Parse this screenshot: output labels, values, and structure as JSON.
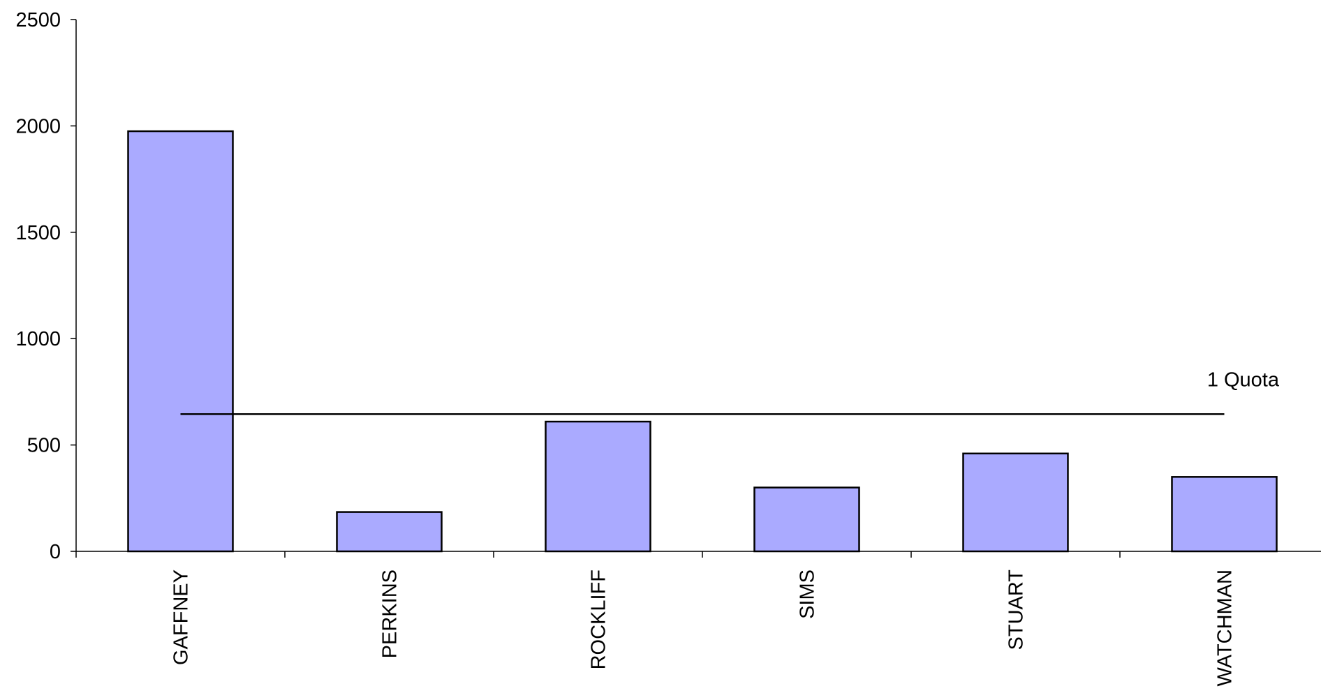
{
  "chart_data": {
    "type": "bar",
    "categories": [
      "GAFFNEY",
      "PERKINS",
      "ROCKLIFF",
      "SIMS",
      "STUART",
      "WATCHMAN"
    ],
    "values": [
      1975,
      185,
      610,
      300,
      460,
      350
    ],
    "ylim": [
      0,
      2500
    ],
    "yticks": [
      0,
      500,
      1000,
      1500,
      2000,
      2500
    ],
    "ytick_labels": [
      "0",
      "500",
      "1000",
      "1500",
      "2000",
      "2500"
    ],
    "grid": false,
    "legend": "none",
    "bar_color": "#aaaaff",
    "bar_edge_color": "#000000",
    "reference_line": {
      "value": 645,
      "label": "1 Quota"
    }
  }
}
